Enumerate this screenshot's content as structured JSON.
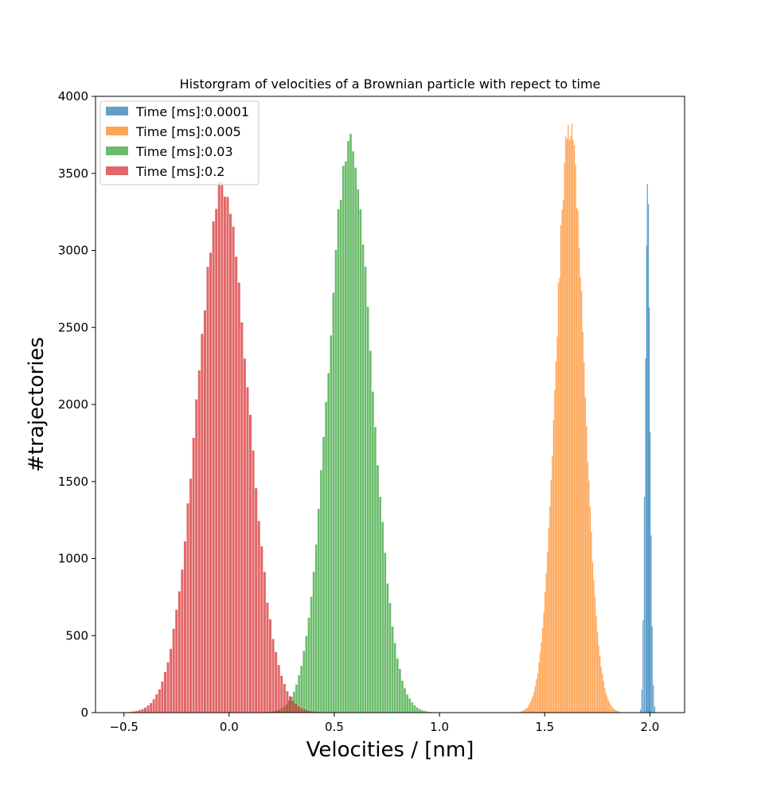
{
  "chart_data": {
    "type": "histogram",
    "title": "Historgram of velocities of a Brownian particle with repect to time",
    "xlabel": "Velocities / [nm]",
    "ylabel": "#trajectories",
    "xlim": [
      -0.635,
      2.165
    ],
    "ylim": [
      0,
      4000
    ],
    "xticks": [
      -0.5,
      0.0,
      0.5,
      1.0,
      1.5,
      2.0
    ],
    "xtick_labels": [
      "−0.5",
      "0.0",
      "0.5",
      "1.0",
      "1.5",
      "2.0"
    ],
    "yticks": [
      0,
      500,
      1000,
      1500,
      2000,
      2500,
      3000,
      3500,
      4000
    ],
    "ytick_labels": [
      "0",
      "500",
      "1000",
      "1500",
      "2000",
      "2500",
      "3000",
      "3500",
      "4000"
    ],
    "grid": false,
    "legend_position": "top-left",
    "series": [
      {
        "name": "Time [ms]:0.0001",
        "color": "#1f77b4",
        "opacity": 0.7,
        "bins": [
          {
            "x": 1.955,
            "y": 20
          },
          {
            "x": 1.962,
            "y": 150
          },
          {
            "x": 1.968,
            "y": 600
          },
          {
            "x": 1.974,
            "y": 1400
          },
          {
            "x": 1.98,
            "y": 2300
          },
          {
            "x": 1.985,
            "y": 3030
          },
          {
            "x": 1.988,
            "y": 3430
          },
          {
            "x": 1.993,
            "y": 3300
          },
          {
            "x": 1.997,
            "y": 2630
          },
          {
            "x": 2.001,
            "y": 1820
          },
          {
            "x": 2.006,
            "y": 1150
          },
          {
            "x": 2.011,
            "y": 560
          },
          {
            "x": 2.017,
            "y": 180
          },
          {
            "x": 2.023,
            "y": 40
          }
        ]
      },
      {
        "name": "Time [ms]:0.005",
        "color": "#ff7f0e",
        "opacity": 0.7,
        "mu": 1.62,
        "sigma": 0.066,
        "peak": 3810,
        "x_range": [
          1.38,
          1.86
        ],
        "bin_width": 0.0058
      },
      {
        "name": "Time [ms]:0.03",
        "color": "#2ca02c",
        "opacity": 0.7,
        "mu": 0.575,
        "sigma": 0.104,
        "peak": 3680,
        "x_range": [
          0.18,
          1.02
        ],
        "bin_width": 0.0117
      },
      {
        "name": "Time [ms]:0.2",
        "color": "#d62728",
        "opacity": 0.7,
        "mu": -0.03,
        "sigma": 0.121,
        "peak": 3410,
        "x_range": [
          -0.52,
          0.48
        ],
        "bin_width": 0.0135
      }
    ]
  }
}
